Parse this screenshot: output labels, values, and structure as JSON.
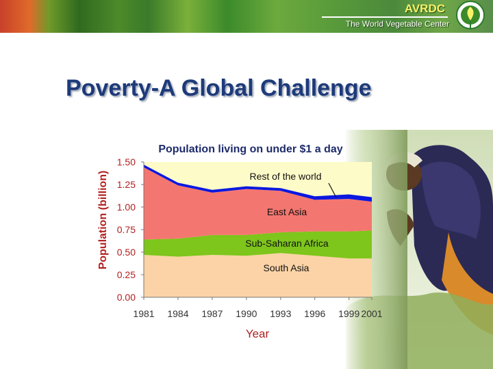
{
  "header": {
    "brand": "AVRDC",
    "tagline": "The World Vegetable Center"
  },
  "slide": {
    "title": "Poverty-A Global Challenge"
  },
  "colors": {
    "south_asia": "#fbd3a6",
    "sub_saharan_africa": "#7ec51c",
    "east_asia": "#f47670",
    "rest_of_world": "#0a18e0",
    "plot_background": "#fdfbc8",
    "axis_text": "#b02020"
  },
  "chart_data": {
    "type": "area",
    "title": "Population living on under $1 a day",
    "xlabel": "Year",
    "ylabel": "Population (billion)",
    "x": [
      1981,
      1984,
      1987,
      1990,
      1993,
      1996,
      1999,
      2001
    ],
    "xticks": [
      "1981",
      "1984",
      "1987",
      "1990",
      "1993",
      "1996",
      "1999",
      "2001"
    ],
    "yticks": [
      "1.50",
      "1.25",
      "1.00",
      "0.75",
      "0.50",
      "0.25",
      "0.00"
    ],
    "ylim": [
      0,
      1.5
    ],
    "stacked": true,
    "series": [
      {
        "name": "South Asia",
        "values": [
          0.47,
          0.45,
          0.47,
          0.46,
          0.49,
          0.46,
          0.43,
          0.43
        ]
      },
      {
        "name": "Sub-Saharan Africa",
        "values": [
          0.17,
          0.2,
          0.22,
          0.23,
          0.23,
          0.27,
          0.3,
          0.31
        ]
      },
      {
        "name": "East Asia",
        "values": [
          0.8,
          0.59,
          0.47,
          0.51,
          0.46,
          0.35,
          0.36,
          0.32
        ]
      },
      {
        "name": "Rest of the world",
        "values": [
          0.03,
          0.03,
          0.03,
          0.03,
          0.03,
          0.04,
          0.05,
          0.05
        ]
      }
    ]
  }
}
